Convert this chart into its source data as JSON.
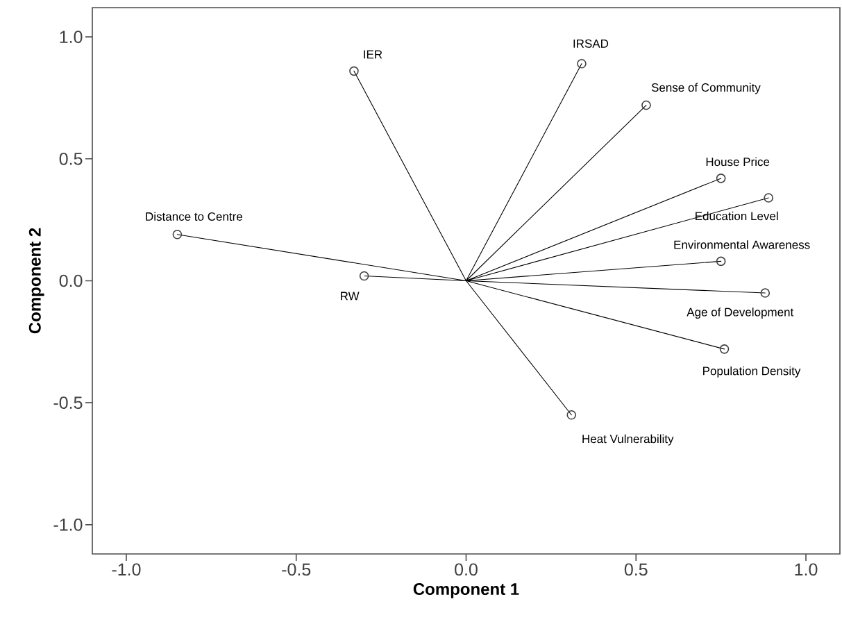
{
  "chart_data": {
    "type": "scatter",
    "xlabel": "Component 1",
    "ylabel": "Component 2",
    "xlim": [
      -1.1,
      1.1
    ],
    "ylim": [
      -1.12,
      1.12
    ],
    "xticks": [
      {
        "value": -1,
        "label": "-1.0"
      },
      {
        "value": -0.5,
        "label": "-0.5"
      },
      {
        "value": 0,
        "label": "0.0"
      },
      {
        "value": 0.5,
        "label": "0.5"
      },
      {
        "value": 1,
        "label": "1.0"
      }
    ],
    "yticks": [
      {
        "value": -1,
        "label": "-1.0"
      },
      {
        "value": -0.5,
        "label": "-0.5"
      },
      {
        "value": 0,
        "label": "0.0"
      },
      {
        "value": 0.5,
        "label": "0.5"
      },
      {
        "value": 1,
        "label": "1.0"
      }
    ],
    "series": [
      {
        "type": "line",
        "color": "#000000",
        "marker": "none",
        "x": [
          0,
          -0.33,
          0,
          0.34,
          0,
          0.53,
          0,
          0.75,
          0,
          0.89,
          0,
          0.75,
          0,
          0.88,
          0,
          0.76,
          0,
          0.31,
          0,
          -0.85,
          0,
          -0.3
        ],
        "values": [
          0,
          0.86,
          0,
          0.89,
          0,
          0.72,
          0,
          0.42,
          0,
          0.34,
          0,
          0.08,
          0,
          -0.05,
          0,
          -0.28,
          0,
          -0.55,
          0,
          0.19,
          0,
          0.02
        ]
      },
      {
        "color": "#404040",
        "marker": "circle",
        "x": [
          -0.33,
          0.34,
          0.53,
          0.75,
          0.89,
          0.75,
          0.88,
          0.76,
          0.31,
          -0.85,
          -0.3
        ],
        "values": [
          0.86,
          0.89,
          0.72,
          0.42,
          0.34,
          0.08,
          -0.05,
          -0.28,
          -0.55,
          0.19,
          0.02
        ]
      }
    ],
    "annotations": [
      {
        "text": "IER",
        "x": -0.33,
        "y": 0.86
      },
      {
        "text": "IRSAD",
        "x": 0.34,
        "y": 0.89
      },
      {
        "text": "Sense of Community",
        "x": 0.53,
        "y": 0.72
      },
      {
        "text": "House Price",
        "x": 0.75,
        "y": 0.42
      },
      {
        "text": "Education Level",
        "x": 0.89,
        "y": 0.34
      },
      {
        "text": "Environmental Awareness",
        "x": 0.75,
        "y": 0.08
      },
      {
        "text": "Age of Development",
        "x": 0.88,
        "y": -0.05
      },
      {
        "text": "Population Density",
        "x": 0.76,
        "y": -0.28
      },
      {
        "text": "Heat Vulnerability",
        "x": 0.31,
        "y": -0.55
      },
      {
        "text": "Distance to Centre",
        "x": -0.85,
        "y": 0.19
      },
      {
        "text": "RW",
        "x": -0.3,
        "y": 0.02
      }
    ]
  }
}
